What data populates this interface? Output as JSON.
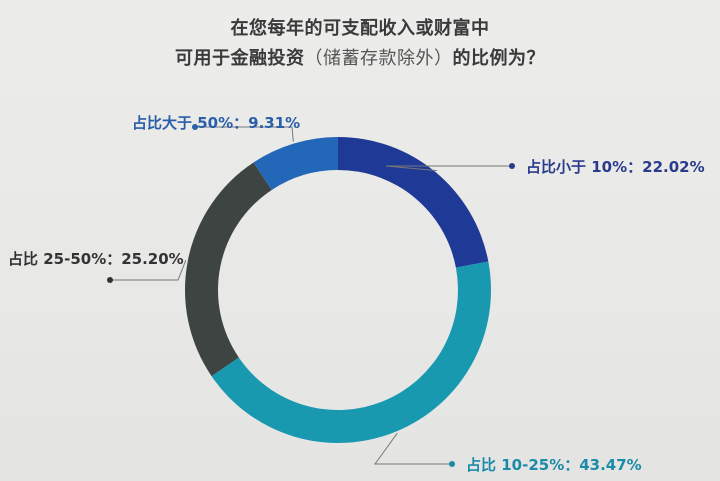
{
  "title": {
    "line1": "在您每年的可支配收入或财富中",
    "line2_a": "可用于金融投资",
    "line2_paren": "（储蓄存款除外）",
    "line2_b": "的比例为？"
  },
  "chart_data": {
    "type": "pie",
    "donut": true,
    "title": "在您每年的可支配收入或财富中可用于金融投资（储蓄存款除外）的比例为？",
    "categories": [
      "占比小于 10%",
      "占比 10-25%",
      "占比 25-50%",
      "占比大于 50%"
    ],
    "values": [
      22.02,
      43.47,
      25.2,
      9.31
    ],
    "value_labels": [
      "22.02%",
      "43.47%",
      "25.20%",
      "9.31%"
    ],
    "colors": [
      "#1e3a96",
      "#1899b0",
      "#3e4442",
      "#2267b8"
    ],
    "label_colors": [
      "#2a3a8c",
      "#1a8ba8",
      "#333333",
      "#2a5ea8"
    ],
    "label_separator": "："
  }
}
